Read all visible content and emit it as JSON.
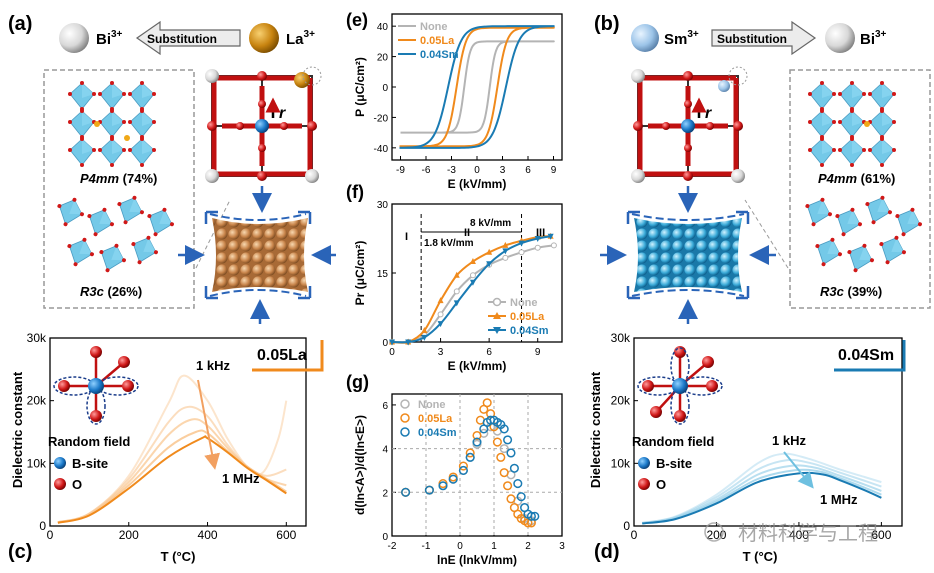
{
  "panels": {
    "a": {
      "label": "(a)",
      "ion_left": "Bi",
      "ion_left_charge": "3+",
      "ion_right": "La",
      "ion_right_charge": "3+",
      "substitution": "Substitution",
      "r_label": "r",
      "phase1": "P4mm",
      "phase1_pct": "(74%)",
      "phase2": "R3c",
      "phase2_pct": "(26%)"
    },
    "b": {
      "label": "(b)",
      "ion_left": "Sm",
      "ion_left_charge": "3+",
      "ion_right": "Bi",
      "ion_right_charge": "3+",
      "substitution": "Substitution",
      "r_label": "r",
      "phase1": "P4mm",
      "phase1_pct": "(61%)",
      "phase2": "R3c",
      "phase2_pct": "(39%)"
    },
    "c": {
      "label": "(c)",
      "tag": "0.05La",
      "freq_high": "1 kHz",
      "freq_low": "1 MHz",
      "random_field": "Random field",
      "b_site": "B-site",
      "o_label": "O"
    },
    "d": {
      "label": "(d)",
      "tag": "0.04Sm",
      "freq_high": "1 kHz",
      "freq_low": "1 MHz",
      "random_field": "Random field",
      "b_site": "B-site",
      "o_label": "O"
    },
    "e": {
      "label": "(e)"
    },
    "f": {
      "label": "(f)",
      "ann_8": "8 kV/mm",
      "ann_18": "1.8 kV/mm",
      "roman_1": "I",
      "roman_2": "II",
      "roman_3": "III"
    },
    "g": {
      "label": "(g)"
    }
  },
  "colors": {
    "none": "#b4b4b4",
    "la": "#f08a1c",
    "sm": "#1a7bb3",
    "la_light": "#f9c690",
    "sm_light": "#9fd3ea"
  },
  "watermark": "材料科学与工程",
  "chart_data": [
    {
      "id": "e",
      "type": "line",
      "xlabel": "E (kV/mm)",
      "ylabel": "P (μC/cm²)",
      "xlim": [
        -10,
        10
      ],
      "ylim": [
        -48,
        48
      ],
      "xticks": [
        -9,
        -6,
        -3,
        0,
        3,
        6,
        9
      ],
      "yticks": [
        -40,
        -20,
        0,
        20,
        40
      ],
      "legend": [
        "None",
        "0.05La",
        "0.04Sm"
      ],
      "series": [
        {
          "name": "None",
          "pmax": 30,
          "pr": 12,
          "ec": 1.5
        },
        {
          "name": "0.05La",
          "pmax": 39,
          "pr": 23,
          "ec": 2.4
        },
        {
          "name": "0.04Sm",
          "pmax": 40,
          "pr": 21,
          "ec": 3.4
        }
      ]
    },
    {
      "id": "f",
      "type": "line",
      "xlabel": "E (kV/mm)",
      "ylabel": "Pr (μC/cm²)",
      "xlim": [
        0,
        10.5
      ],
      "ylim": [
        0,
        30
      ],
      "xticks": [
        0,
        3,
        6,
        9
      ],
      "yticks": [
        0,
        15,
        30
      ],
      "legend": [
        "None",
        "0.05La",
        "0.04Sm"
      ],
      "vlines": [
        1.8,
        8
      ],
      "series": [
        {
          "name": "None",
          "x": [
            0,
            1,
            2,
            3,
            4,
            5,
            6,
            7,
            8,
            9,
            10
          ],
          "values": [
            0,
            0,
            1.5,
            6,
            11,
            14.5,
            16.8,
            18.3,
            19.5,
            20.5,
            21
          ]
        },
        {
          "name": "0.05La",
          "x": [
            0,
            1,
            2,
            3,
            4,
            5,
            6,
            7,
            8,
            9,
            9.8
          ],
          "values": [
            0,
            0,
            2.5,
            9,
            14.5,
            17.5,
            19.5,
            21,
            22,
            22.8,
            23
          ]
        },
        {
          "name": "0.04Sm",
          "x": [
            0,
            1,
            2,
            3,
            4,
            5,
            6,
            7,
            8,
            9,
            9.8
          ],
          "values": [
            0,
            0,
            1,
            4,
            8.5,
            13,
            17,
            19.8,
            21.5,
            22.5,
            23
          ]
        }
      ]
    },
    {
      "id": "g",
      "type": "scatter",
      "xlabel": "lnE (lnkV/mm)",
      "ylabel": "d(ln<A>)/d(ln<E>)",
      "xlim": [
        -2,
        3
      ],
      "ylim": [
        0,
        6.5
      ],
      "xticks": [
        -2,
        -1,
        0,
        1,
        2,
        3
      ],
      "yticks": [
        0,
        2,
        4,
        6
      ],
      "legend": [
        "None",
        "0.05La",
        "0.04Sm"
      ],
      "series": [
        {
          "name": "None",
          "x": [
            -1.6,
            -0.9,
            -0.5,
            -0.2,
            0.1,
            0.3,
            0.5,
            0.7,
            0.9,
            1.1,
            1.3,
            1.5,
            1.7,
            1.9,
            2.1
          ],
          "values": [
            2.0,
            2.1,
            2.3,
            2.6,
            3.0,
            3.6,
            4.2,
            4.7,
            5.0,
            4.8,
            4.0,
            2.8,
            1.6,
            0.8,
            0.7
          ]
        },
        {
          "name": "0.05La",
          "x": [
            -1.6,
            -0.9,
            -0.5,
            -0.2,
            0.1,
            0.3,
            0.5,
            0.6,
            0.7,
            0.8,
            0.9,
            1.0,
            1.1,
            1.2,
            1.3,
            1.4,
            1.5,
            1.6,
            1.7,
            1.8,
            1.9,
            2.0,
            2.1
          ],
          "values": [
            2.0,
            2.1,
            2.4,
            2.7,
            3.2,
            3.8,
            4.6,
            5.3,
            5.8,
            6.1,
            5.6,
            5.0,
            4.3,
            3.6,
            2.9,
            2.3,
            1.7,
            1.3,
            1.0,
            0.8,
            0.7,
            0.6,
            0.6
          ]
        },
        {
          "name": "0.04Sm",
          "x": [
            -1.6,
            -0.9,
            -0.5,
            -0.2,
            0.1,
            0.3,
            0.5,
            0.7,
            0.8,
            0.9,
            1.0,
            1.1,
            1.2,
            1.3,
            1.4,
            1.5,
            1.6,
            1.7,
            1.8,
            1.9,
            2.0,
            2.1,
            2.2
          ],
          "values": [
            2.0,
            2.1,
            2.3,
            2.6,
            3.0,
            3.6,
            4.3,
            4.9,
            5.2,
            5.3,
            5.3,
            5.2,
            5.1,
            4.9,
            4.4,
            3.8,
            3.1,
            2.4,
            1.8,
            1.3,
            1.0,
            0.9,
            0.9
          ]
        }
      ]
    },
    {
      "id": "c",
      "type": "line",
      "xlabel": "T (°C)",
      "ylabel": "Dielectric constant",
      "xlim": [
        0,
        650
      ],
      "ylim": [
        0,
        30000
      ],
      "xticks": [
        0,
        200,
        400,
        600
      ],
      "yticks": [
        0,
        10000,
        20000,
        30000
      ],
      "ytick_labels": [
        "0",
        "10k",
        "20k",
        "30k"
      ],
      "series": [
        {
          "name": "1 kHz",
          "x": [
            20,
            100,
            200,
            300,
            340,
            400,
            450,
            500,
            540,
            580,
            600
          ],
          "values": [
            600,
            2000,
            8000,
            19500,
            24000,
            20000,
            14000,
            9500,
            8500,
            14000,
            20000
          ]
        },
        {
          "name": "f2",
          "x": [
            20,
            100,
            200,
            300,
            350,
            400,
            450,
            500,
            550,
            600
          ],
          "values": [
            600,
            2000,
            7500,
            16500,
            19000,
            17500,
            13000,
            9500,
            8000,
            9000
          ]
        },
        {
          "name": "f3",
          "x": [
            20,
            100,
            200,
            300,
            360,
            400,
            450,
            500,
            550,
            600
          ],
          "values": [
            600,
            1900,
            7000,
            14500,
            17000,
            16000,
            12500,
            9500,
            7500,
            6500
          ]
        },
        {
          "name": "f4",
          "x": [
            20,
            100,
            200,
            300,
            370,
            400,
            450,
            500,
            550,
            600
          ],
          "values": [
            550,
            1800,
            6500,
            12500,
            15000,
            14800,
            12000,
            9500,
            7500,
            5500
          ]
        },
        {
          "name": "1 MHz",
          "x": [
            20,
            100,
            200,
            300,
            385,
            400,
            450,
            500,
            550,
            600
          ],
          "values": [
            500,
            1700,
            6000,
            11000,
            14000,
            14000,
            11800,
            9300,
            7300,
            5200
          ]
        }
      ]
    },
    {
      "id": "d",
      "type": "line",
      "xlabel": "T (°C)",
      "ylabel": "Dielectric constant",
      "xlim": [
        0,
        650
      ],
      "ylim": [
        0,
        30000
      ],
      "xticks": [
        0,
        200,
        400,
        600
      ],
      "yticks": [
        0,
        10000,
        20000,
        30000
      ],
      "ytick_labels": [
        "0",
        "10k",
        "20k",
        "30k"
      ],
      "series": [
        {
          "name": "1 kHz",
          "x": [
            20,
            100,
            200,
            300,
            360,
            420,
            500,
            560,
            600
          ],
          "values": [
            500,
            1500,
            5000,
            10000,
            11500,
            10800,
            9000,
            7800,
            7000
          ]
        },
        {
          "name": "f2",
          "x": [
            20,
            100,
            200,
            300,
            370,
            430,
            500,
            560,
            600
          ],
          "values": [
            500,
            1400,
            4600,
            9000,
            10500,
            10000,
            8500,
            7200,
            6300
          ]
        },
        {
          "name": "f3",
          "x": [
            20,
            100,
            200,
            300,
            380,
            440,
            500,
            560,
            600
          ],
          "values": [
            450,
            1300,
            4200,
            8200,
            9600,
            9300,
            8000,
            6600,
            5600
          ]
        },
        {
          "name": "f4",
          "x": [
            20,
            100,
            200,
            300,
            390,
            450,
            500,
            560,
            600
          ],
          "values": [
            450,
            1200,
            3900,
            7500,
            8900,
            8700,
            7600,
            6100,
            5000
          ]
        },
        {
          "name": "1 MHz",
          "x": [
            20,
            100,
            200,
            300,
            400,
            460,
            500,
            560,
            600
          ],
          "values": [
            400,
            1100,
            3600,
            7000,
            8400,
            8200,
            7300,
            5700,
            4500
          ]
        }
      ]
    }
  ]
}
